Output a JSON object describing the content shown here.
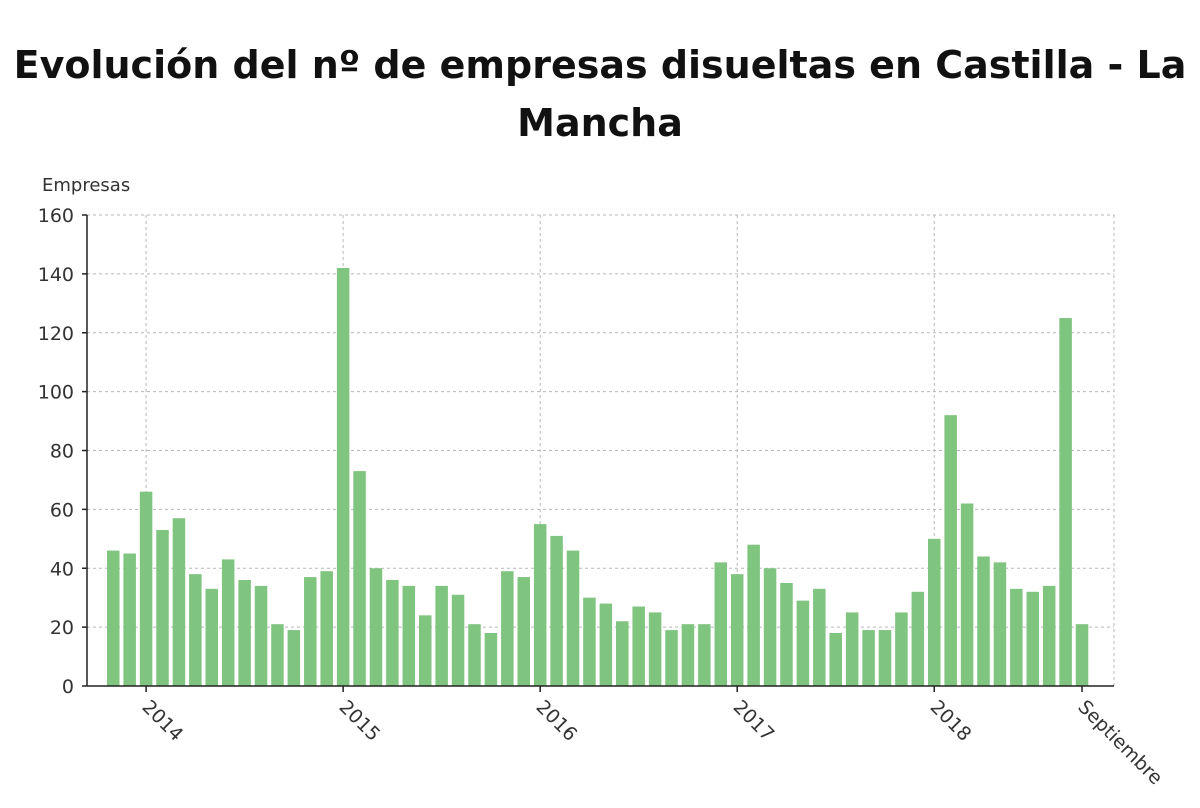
{
  "chart_data": {
    "type": "bar",
    "title": "Evolución del nº de empresas disueltas en Castilla - La Mancha",
    "title_lines": [
      "Evolución del nº de empresas disueltas en Castilla - La",
      "Mancha"
    ],
    "ylabel": "Empresas",
    "xlabel": "",
    "ylim": [
      0,
      160
    ],
    "yticks": [
      0,
      20,
      40,
      60,
      80,
      100,
      120,
      140,
      160
    ],
    "x_tick_labels": [
      {
        "label": "2014",
        "index": 2
      },
      {
        "label": "2015",
        "index": 14
      },
      {
        "label": "2016",
        "index": 26
      },
      {
        "label": "2017",
        "index": 38
      },
      {
        "label": "2018",
        "index": 50
      },
      {
        "label": "Septiembre",
        "index": 59
      }
    ],
    "grid": true,
    "bar_color": "#7fc47f",
    "values": [
      46,
      45,
      66,
      53,
      57,
      38,
      33,
      43,
      36,
      34,
      21,
      19,
      37,
      39,
      142,
      73,
      40,
      36,
      34,
      24,
      34,
      31,
      21,
      18,
      39,
      37,
      55,
      51,
      46,
      30,
      28,
      22,
      27,
      25,
      19,
      21,
      21,
      42,
      38,
      48,
      40,
      35,
      29,
      33,
      18,
      25,
      19,
      19,
      25,
      32,
      50,
      92,
      62,
      44,
      42,
      33,
      32,
      34,
      125,
      21
    ]
  }
}
